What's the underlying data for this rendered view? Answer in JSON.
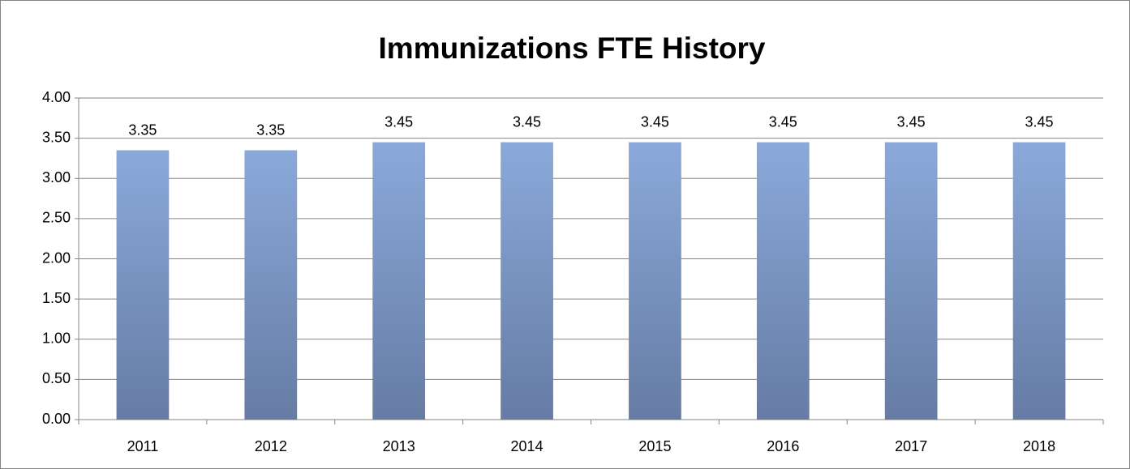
{
  "chart_data": {
    "type": "bar",
    "title": "Immunizations FTE History",
    "categories": [
      "2011",
      "2012",
      "2013",
      "2014",
      "2015",
      "2016",
      "2017",
      "2018"
    ],
    "values": [
      3.35,
      3.35,
      3.45,
      3.45,
      3.45,
      3.45,
      3.45,
      3.45
    ],
    "color": "#7b98c8",
    "ylim": [
      0,
      4
    ],
    "yticks": [
      {
        "value": 0,
        "label": "0.00"
      },
      {
        "value": 0.5,
        "label": "0.50"
      },
      {
        "value": 1,
        "label": "1.00"
      },
      {
        "value": 1.5,
        "label": "1.50"
      },
      {
        "value": 2,
        "label": "2.00"
      },
      {
        "value": 2.5,
        "label": "2.50"
      },
      {
        "value": 3,
        "label": "3.00"
      },
      {
        "value": 3.5,
        "label": "3.50"
      },
      {
        "value": 4,
        "label": "4.00"
      }
    ],
    "grid": true
  }
}
